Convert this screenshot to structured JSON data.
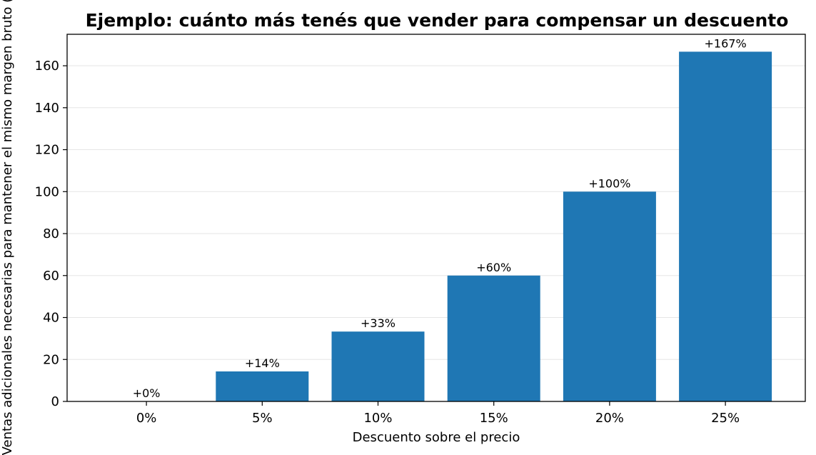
{
  "chart_data": {
    "type": "bar",
    "title": "Ejemplo: cuánto más tenés que vender para compensar un descuento",
    "xlabel": "Descuento sobre el precio",
    "ylabel": "Ventas adicionales necesarias para mantener el mismo margen bruto (%)",
    "categories": [
      "0%",
      "5%",
      "10%",
      "15%",
      "20%",
      "25%"
    ],
    "values": [
      0,
      14.3,
      33.3,
      60,
      100,
      166.7
    ],
    "data_labels": [
      "+0%",
      "+14%",
      "+33%",
      "+60%",
      "+100%",
      "+167%"
    ],
    "ylim": [
      0,
      175
    ],
    "yticks": [
      0,
      20,
      40,
      60,
      80,
      100,
      120,
      140,
      160
    ],
    "grid": "horizontal",
    "bar_color": "#1f77b4",
    "grid_color": "#e6e6e6"
  }
}
